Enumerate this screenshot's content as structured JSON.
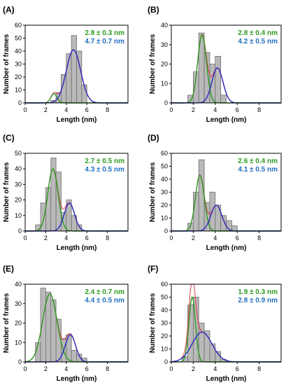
{
  "figure": {
    "xlabel": "Length (nm)",
    "ylabel": "Number of frames",
    "bin_width": 0.5
  },
  "colors": {
    "bar_fill": "#b9b9b9",
    "bar_stroke": "#6f6f6f",
    "green": "#2b9a1f",
    "blue": "#1f6fc0",
    "fit_blue": "#2a2ac0",
    "red": "#d9313d",
    "axis": "#000000"
  },
  "chart_data": [
    {
      "type": "bar",
      "panel": "(A)",
      "title": "(A)",
      "xlabel": "Length (nm)",
      "ylabel": "Number of frames",
      "xlim": [
        0,
        10
      ],
      "ylim": [
        0,
        60
      ],
      "xticks": [
        0,
        2,
        4,
        6,
        8
      ],
      "yticks": [
        0,
        10,
        20,
        30,
        40,
        50,
        60
      ],
      "bin_starts": [
        2.5,
        3.0,
        3.5,
        4.0,
        4.5,
        5.0,
        5.5
      ],
      "values": [
        2,
        8,
        22,
        38,
        52,
        40,
        14
      ],
      "fits": [
        {
          "name": "2.8 ± 0.3 nm",
          "color": "#2b9a1f",
          "mean": 2.8,
          "sd": 0.3,
          "peak": 7
        },
        {
          "name": "4.7 ± 0.7 nm",
          "color": "#1f6fc0",
          "mean": 4.7,
          "sd": 0.7,
          "peak": 41
        }
      ],
      "legend": [
        "2.8 ± 0.3 nm",
        "4.7 ± 0.7 nm"
      ],
      "legend_position": "top-right"
    },
    {
      "type": "bar",
      "panel": "(B)",
      "title": "(B)",
      "xlabel": "Length (nm)",
      "ylabel": "Number of frames",
      "xlim": [
        0,
        10
      ],
      "ylim": [
        0,
        40
      ],
      "xticks": [
        0,
        2,
        4,
        6,
        8
      ],
      "yticks": [
        0,
        10,
        20,
        30,
        40
      ],
      "bin_starts": [
        1.5,
        2.0,
        2.5,
        3.0,
        3.5,
        4.0,
        4.5
      ],
      "values": [
        4,
        16,
        36,
        26,
        20,
        24,
        4
      ],
      "fits": [
        {
          "name": "2.8 ± 0.4 nm",
          "color": "#2b9a1f",
          "mean": 2.8,
          "sd": 0.4,
          "peak": 35
        },
        {
          "name": "4.2 ± 0.5 nm",
          "color": "#1f6fc0",
          "mean": 4.2,
          "sd": 0.5,
          "peak": 18
        }
      ],
      "legend": [
        "2.8 ± 0.4 nm",
        "4.2 ± 0.5 nm"
      ],
      "legend_position": "top-right"
    },
    {
      "type": "bar",
      "panel": "(C)",
      "title": "(C)",
      "xlabel": "Length (nm)",
      "ylabel": "Number of frames",
      "xlim": [
        0,
        10
      ],
      "ylim": [
        0,
        50
      ],
      "xticks": [
        0,
        2,
        4,
        6,
        8
      ],
      "yticks": [
        0,
        10,
        20,
        30,
        40,
        50
      ],
      "bin_starts": [
        1.0,
        1.5,
        2.0,
        2.5,
        3.0,
        3.5,
        4.0,
        4.5,
        5.0
      ],
      "values": [
        4,
        18,
        28,
        47,
        38,
        12,
        20,
        10,
        4
      ],
      "fits": [
        {
          "name": "2.7 ± 0.5 nm",
          "color": "#2b9a1f",
          "mean": 2.7,
          "sd": 0.5,
          "peak": 40
        },
        {
          "name": "4.3 ± 0.5 nm",
          "color": "#1f6fc0",
          "mean": 4.3,
          "sd": 0.5,
          "peak": 18
        }
      ],
      "legend": [
        "2.7 ± 0.5 nm",
        "4.3 ± 0.5 nm"
      ],
      "legend_position": "top-right"
    },
    {
      "type": "bar",
      "panel": "(D)",
      "title": "(D)",
      "xlabel": "Length (nm)",
      "ylabel": "Number of frames",
      "xlim": [
        0,
        10
      ],
      "ylim": [
        0,
        60
      ],
      "xticks": [
        0,
        2,
        4,
        6,
        8
      ],
      "yticks": [
        0,
        10,
        20,
        30,
        40,
        50,
        60
      ],
      "bin_starts": [
        1.5,
        2.0,
        2.5,
        3.0,
        3.5,
        4.0,
        4.5,
        5.0,
        5.5
      ],
      "values": [
        6,
        30,
        55,
        22,
        30,
        20,
        12,
        8,
        4
      ],
      "fits": [
        {
          "name": "2.6 ± 0.4 nm",
          "color": "#2b9a1f",
          "mean": 2.6,
          "sd": 0.4,
          "peak": 43
        },
        {
          "name": "4.1 ± 0.5 nm",
          "color": "#1f6fc0",
          "mean": 4.1,
          "sd": 0.5,
          "peak": 20
        }
      ],
      "legend": [
        "2.6 ± 0.4 nm",
        "4.1 ± 0.5 nm"
      ],
      "legend_position": "top-right"
    },
    {
      "type": "bar",
      "panel": "(E)",
      "title": "(E)",
      "xlabel": "Length (nm)",
      "ylabel": "Number of frames",
      "xlim": [
        0,
        10
      ],
      "ylim": [
        0,
        40
      ],
      "xticks": [
        0,
        2,
        4,
        6,
        8
      ],
      "yticks": [
        0,
        10,
        20,
        30,
        40
      ],
      "bin_starts": [
        1.0,
        1.5,
        2.0,
        2.5,
        3.0,
        3.5,
        4.0,
        4.5,
        5.0,
        5.5
      ],
      "values": [
        10,
        38,
        36,
        32,
        22,
        12,
        14,
        6,
        4,
        2
      ],
      "fits": [
        {
          "name": "2.4 ± 0.7 nm",
          "color": "#2b9a1f",
          "mean": 2.4,
          "sd": 0.7,
          "peak": 35
        },
        {
          "name": "4.4 ± 0.5 nm",
          "color": "#1f6fc0",
          "mean": 4.4,
          "sd": 0.5,
          "peak": 14
        }
      ],
      "legend": [
        "2.4 ± 0.7 nm",
        "4.4 ± 0.5 nm"
      ],
      "legend_position": "top-right"
    },
    {
      "type": "bar",
      "panel": "(F)",
      "title": "(F)",
      "xlabel": "Length (nm)",
      "ylabel": "Number of frames",
      "xlim": [
        0,
        10
      ],
      "ylim": [
        0,
        60
      ],
      "xticks": [
        0,
        2,
        4,
        6,
        8
      ],
      "yticks": [
        0,
        10,
        20,
        30,
        40,
        50,
        60
      ],
      "bin_starts": [
        1.0,
        1.5,
        2.0,
        2.5,
        3.0,
        3.5,
        4.0,
        4.5
      ],
      "values": [
        4,
        44,
        50,
        30,
        24,
        14,
        8,
        2
      ],
      "fits": [
        {
          "name": "1.9 ± 0.3 nm",
          "color": "#2b9a1f",
          "mean": 1.9,
          "sd": 0.3,
          "peak": 50
        },
        {
          "name": "2.8 ± 0.9 nm",
          "color": "#1f6fc0",
          "mean": 2.8,
          "sd": 0.9,
          "peak": 23
        }
      ],
      "legend": [
        "1.9 ± 0.3 nm",
        "2.8 ± 0.9 nm"
      ],
      "legend_position": "top-right"
    }
  ]
}
